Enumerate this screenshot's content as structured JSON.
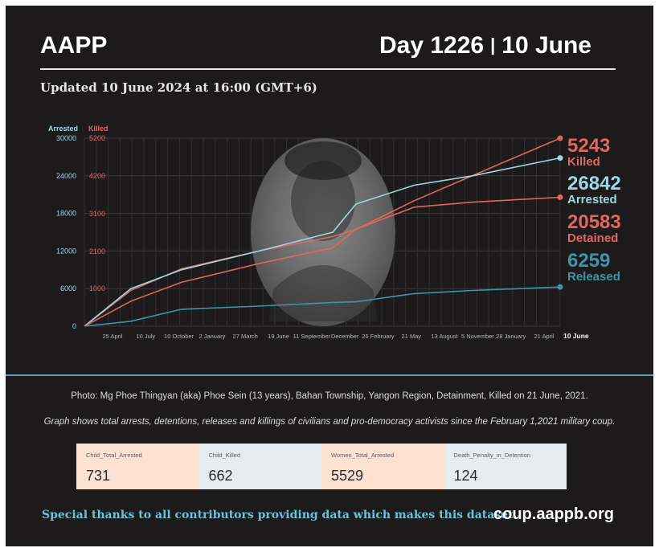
{
  "header": {
    "org": "AAPP",
    "day": "Day 1226",
    "sep": "|",
    "date": "10 June",
    "updated": "Updated 10 June 2024 at 16:00 (GMT+6)"
  },
  "chart_data": {
    "type": "line",
    "left_axis_title": "Arrested",
    "right_axis_title": "Killed",
    "left_ticks": [
      "30000",
      "24000",
      "18000",
      "12000",
      "6000",
      "0"
    ],
    "right_ticks": [
      "5200",
      "4200",
      "3100",
      "2100",
      "1000"
    ],
    "left_ylim": [
      0,
      30000
    ],
    "right_ylim": [
      0,
      5243
    ],
    "x_ticks": [
      "25 April",
      "10 July",
      "10 October",
      "2 January",
      "27 March",
      "19 June",
      "11 September",
      "December",
      "26 February",
      "21 May",
      "13 August",
      "5 November",
      "28 January",
      "21 April"
    ],
    "end_label": "10 June",
    "grid": true,
    "series": [
      {
        "name": "Killed",
        "axis": "right",
        "color": "#e0675f",
        "final": 5243,
        "x": [
          0,
          120,
          250,
          450,
          640,
          700,
          850,
          1000,
          1226
        ],
        "y": [
          0,
          1000,
          1600,
          2100,
          2500,
          2700,
          3500,
          4200,
          5243
        ]
      },
      {
        "name": "Arrested",
        "axis": "left",
        "color": "#9fd6e4",
        "final": 26842,
        "x": [
          0,
          120,
          250,
          450,
          640,
          700,
          850,
          1000,
          1226
        ],
        "y": [
          0,
          6000,
          9000,
          12000,
          15000,
          19500,
          22500,
          24000,
          26842
        ]
      },
      {
        "name": "Detained",
        "axis": "left",
        "color": "#e0675f",
        "final": 20583,
        "x": [
          0,
          120,
          250,
          450,
          640,
          700,
          850,
          1000,
          1226
        ],
        "y": [
          0,
          4000,
          7000,
          10000,
          12500,
          15500,
          19000,
          19800,
          20583
        ]
      },
      {
        "name": "Released",
        "axis": "left",
        "color": "#3f94ab",
        "final": 6259,
        "x": [
          0,
          120,
          250,
          450,
          640,
          700,
          850,
          1000,
          1226
        ],
        "y": [
          0,
          800,
          2700,
          3200,
          3800,
          3900,
          5200,
          5700,
          6259
        ]
      }
    ]
  },
  "labels": {
    "killed_num": "5243",
    "killed_txt": "Killed",
    "arrested_num": "26842",
    "arrested_txt": "Arrested",
    "detained_num": "20583",
    "detained_txt": "Detained",
    "released_num": "6259",
    "released_txt": "Released"
  },
  "captions": {
    "photo": "Photo: Mg Phoe Thingyan (aka) Phoe Sein (13 years), Bahan Township, Yangon Region, Detainment, Killed on 21 June, 2021.",
    "graph": "Graph shows total arrests, detentions, releases and killings of civilians and pro-democracy activists since the February 1,2021 military coup."
  },
  "cards": [
    {
      "label": "Child_Total_Arrested",
      "value": "731",
      "bg": "#fde2d2"
    },
    {
      "label": "Child_Killed",
      "value": "662",
      "bg": "#e7ebf2"
    },
    {
      "label": "Women_Total_Arrested",
      "value": "5529",
      "bg": "#fde2d2"
    },
    {
      "label": "Death_Penalty_in_Detention",
      "value": "124",
      "bg": "#e7ebf2"
    }
  ],
  "footer": {
    "thanks": "Special thanks to all contributors providing data which makes this dataset.",
    "site": "coup.aappb.org"
  },
  "colors": {
    "background": "#1c1a1b",
    "killed": "#e0675f",
    "arrested": "#9fd6e4",
    "released": "#3f94ab",
    "footer_accent": "#6cc3d6"
  }
}
